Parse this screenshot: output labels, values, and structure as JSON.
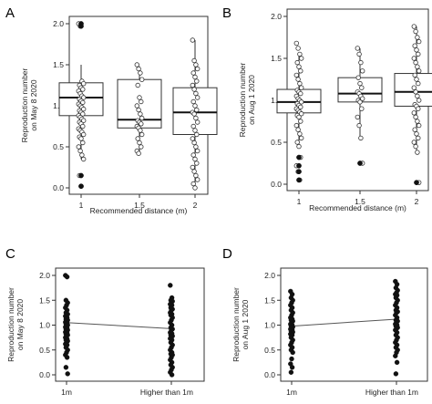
{
  "chart_data": [
    {
      "panel": "A",
      "type": "boxplot",
      "xlabel": "Recommended distance (m)",
      "ylabel": [
        "Reproduction number",
        "on May 8 2020"
      ],
      "categories": [
        "1",
        "1.5",
        "2"
      ],
      "ylim": [
        0.0,
        2.0
      ],
      "yticks": [
        "0.0",
        "0.5",
        "1.0",
        "1.5",
        "2.0"
      ],
      "boxes": [
        {
          "q1": 0.88,
          "median": 1.1,
          "q3": 1.28,
          "whisker_low": 0.35,
          "whisker_high": 1.5
        },
        {
          "q1": 0.73,
          "median": 0.83,
          "q3": 1.32,
          "whisker_low": 0.42,
          "whisker_high": 1.48
        },
        {
          "q1": 0.65,
          "median": 0.92,
          "q3": 1.22,
          "whisker_low": 0.0,
          "whisker_high": 1.8
        }
      ],
      "points": [
        [
          2.0,
          1.97,
          1.3,
          1.27,
          1.25,
          1.22,
          1.2,
          1.18,
          1.15,
          1.12,
          1.1,
          1.08,
          1.06,
          1.04,
          1.02,
          1.0,
          0.98,
          0.96,
          0.94,
          0.92,
          0.9,
          0.88,
          0.86,
          0.84,
          0.82,
          0.8,
          0.78,
          0.75,
          0.72,
          0.7,
          0.68,
          0.65,
          0.62,
          0.6,
          0.55,
          0.5,
          0.45,
          0.4,
          0.35,
          0.15,
          0.02
        ],
        [
          1.5,
          1.45,
          1.4,
          1.32,
          1.25,
          1.1,
          1.05,
          1.0,
          0.95,
          0.9,
          0.85,
          0.82,
          0.8,
          0.78,
          0.75,
          0.73,
          0.7,
          0.65,
          0.6,
          0.55,
          0.5,
          0.45,
          0.42
        ],
        [
          1.8,
          1.55,
          1.5,
          1.45,
          1.4,
          1.35,
          1.3,
          1.25,
          1.2,
          1.15,
          1.1,
          1.05,
          1.0,
          0.95,
          0.92,
          0.9,
          0.85,
          0.8,
          0.75,
          0.7,
          0.65,
          0.6,
          0.55,
          0.5,
          0.45,
          0.4,
          0.35,
          0.3,
          0.25,
          0.2,
          0.15,
          0.1,
          0.05,
          0.0
        ]
      ],
      "outliers": [
        [
          2.0,
          1.97,
          0.15,
          0.02
        ],
        [],
        []
      ]
    },
    {
      "panel": "B",
      "type": "boxplot",
      "xlabel": "Recommended distance (m)",
      "ylabel": [
        "Reproduction number",
        "on Aug 1 2020"
      ],
      "categories": [
        "1",
        "1.5",
        "2"
      ],
      "ylim": [
        0.0,
        2.0
      ],
      "yticks": [
        "0.0",
        "0.5",
        "1.0",
        "1.5",
        "2.0"
      ],
      "boxes": [
        {
          "q1": 0.85,
          "median": 0.98,
          "q3": 1.13,
          "whisker_low": 0.45,
          "whisker_high": 1.55
        },
        {
          "q1": 0.98,
          "median": 1.08,
          "q3": 1.27,
          "whisker_low": 0.55,
          "whisker_high": 1.62
        },
        {
          "q1": 0.93,
          "median": 1.1,
          "q3": 1.32,
          "whisker_low": 0.38,
          "whisker_high": 1.88
        }
      ],
      "points": [
        [
          1.68,
          1.62,
          1.55,
          1.5,
          1.45,
          1.4,
          1.35,
          1.3,
          1.25,
          1.2,
          1.15,
          1.12,
          1.1,
          1.08,
          1.05,
          1.02,
          1.0,
          0.98,
          0.96,
          0.94,
          0.92,
          0.9,
          0.88,
          0.86,
          0.84,
          0.82,
          0.8,
          0.75,
          0.7,
          0.65,
          0.6,
          0.55,
          0.5,
          0.45,
          0.32,
          0.22,
          0.15,
          0.05
        ],
        [
          1.62,
          1.55,
          1.45,
          1.35,
          1.27,
          1.2,
          1.15,
          1.1,
          1.08,
          1.05,
          1.02,
          1.0,
          0.98,
          0.9,
          0.8,
          0.7,
          0.55,
          0.25
        ],
        [
          1.88,
          1.82,
          1.75,
          1.7,
          1.65,
          1.6,
          1.55,
          1.5,
          1.45,
          1.4,
          1.35,
          1.3,
          1.25,
          1.2,
          1.15,
          1.1,
          1.05,
          1.0,
          0.95,
          0.93,
          0.9,
          0.85,
          0.8,
          0.75,
          0.7,
          0.65,
          0.6,
          0.55,
          0.5,
          0.45,
          0.38,
          0.02
        ]
      ],
      "outliers": [
        [
          0.32,
          0.22,
          0.15,
          0.05
        ],
        [
          0.25
        ],
        [
          0.02
        ]
      ]
    },
    {
      "panel": "C",
      "type": "scatter",
      "xlabel": "",
      "ylabel": [
        "Reproduction number",
        "on May 8 2020"
      ],
      "categories": [
        "1m",
        "Higher than 1m"
      ],
      "ylim": [
        0.0,
        2.0
      ],
      "yticks": [
        "0.0",
        "0.5",
        "1.0",
        "1.5",
        "2.0"
      ],
      "trend": [
        1.05,
        0.93
      ],
      "points": [
        [
          2.0,
          1.97,
          1.5,
          1.45,
          1.4,
          1.35,
          1.3,
          1.25,
          1.22,
          1.2,
          1.18,
          1.15,
          1.12,
          1.1,
          1.08,
          1.06,
          1.04,
          1.02,
          1.0,
          0.98,
          0.96,
          0.94,
          0.92,
          0.9,
          0.88,
          0.86,
          0.84,
          0.82,
          0.8,
          0.78,
          0.75,
          0.72,
          0.7,
          0.68,
          0.65,
          0.62,
          0.6,
          0.55,
          0.5,
          0.45,
          0.4,
          0.35,
          0.15,
          0.02
        ],
        [
          1.8,
          1.55,
          1.5,
          1.48,
          1.45,
          1.42,
          1.4,
          1.35,
          1.32,
          1.3,
          1.25,
          1.22,
          1.2,
          1.15,
          1.1,
          1.05,
          1.0,
          0.95,
          0.92,
          0.9,
          0.85,
          0.83,
          0.8,
          0.78,
          0.75,
          0.73,
          0.7,
          0.65,
          0.6,
          0.55,
          0.5,
          0.45,
          0.42,
          0.4,
          0.35,
          0.3,
          0.25,
          0.2,
          0.15,
          0.1,
          0.05,
          0.0
        ]
      ]
    },
    {
      "panel": "D",
      "type": "scatter",
      "xlabel": "",
      "ylabel": [
        "Reproduction number",
        "on Aug 1 2020"
      ],
      "categories": [
        "1m",
        "Higher than 1m"
      ],
      "ylim": [
        0.0,
        2.0
      ],
      "yticks": [
        "0.0",
        "0.5",
        "1.0",
        "1.5",
        "2.0"
      ],
      "trend": [
        0.98,
        1.12
      ],
      "points": [
        [
          1.68,
          1.62,
          1.55,
          1.5,
          1.45,
          1.4,
          1.35,
          1.3,
          1.25,
          1.2,
          1.15,
          1.12,
          1.1,
          1.08,
          1.05,
          1.02,
          1.0,
          0.98,
          0.96,
          0.94,
          0.92,
          0.9,
          0.88,
          0.86,
          0.84,
          0.82,
          0.8,
          0.75,
          0.7,
          0.65,
          0.6,
          0.55,
          0.5,
          0.45,
          0.32,
          0.22,
          0.15,
          0.05
        ],
        [
          1.88,
          1.82,
          1.75,
          1.7,
          1.65,
          1.62,
          1.6,
          1.55,
          1.5,
          1.45,
          1.4,
          1.35,
          1.3,
          1.27,
          1.25,
          1.2,
          1.15,
          1.1,
          1.08,
          1.05,
          1.02,
          1.0,
          0.98,
          0.95,
          0.93,
          0.9,
          0.85,
          0.8,
          0.75,
          0.7,
          0.65,
          0.6,
          0.55,
          0.5,
          0.45,
          0.38,
          0.25,
          0.02
        ]
      ]
    }
  ],
  "panels": {
    "a": {
      "letter": "A"
    },
    "b": {
      "letter": "B"
    },
    "c": {
      "letter": "C"
    },
    "d": {
      "letter": "D"
    }
  }
}
